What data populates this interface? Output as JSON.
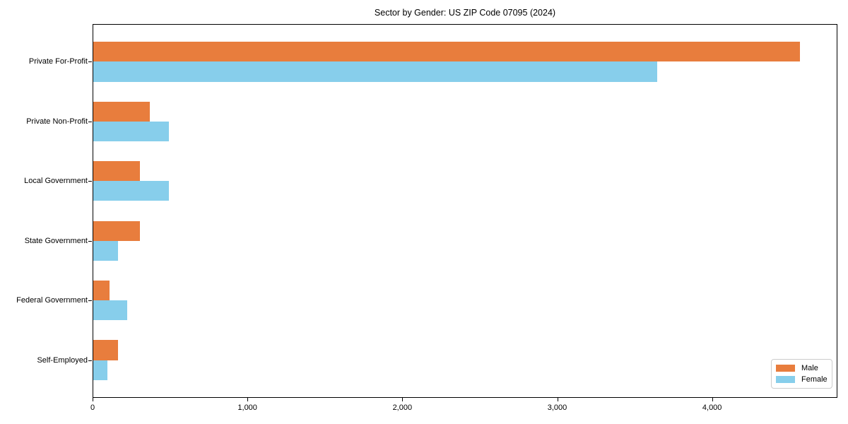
{
  "title": "Sector by Gender: US ZIP Code 07095 (2024)",
  "colors": {
    "male": "#e87d3d",
    "female": "#87ceeb",
    "axis": "#000000",
    "text": "#000000",
    "background": "#ffffff",
    "legend_border": "#cccccc"
  },
  "chart_data": {
    "type": "bar",
    "orientation": "horizontal",
    "title": "Sector by Gender: US ZIP Code 07095 (2024)",
    "categories": [
      "Private For-Profit",
      "Private Non-Profit",
      "Local Government",
      "State Government",
      "Federal Government",
      "Self-Employed"
    ],
    "series": [
      {
        "name": "Male",
        "color": "#e87d3d",
        "values": [
          4565,
          365,
          300,
          300,
          105,
          160
        ]
      },
      {
        "name": "Female",
        "color": "#87ceeb",
        "values": [
          3640,
          490,
          490,
          160,
          220,
          90
        ]
      }
    ],
    "xlabel": "",
    "ylabel": "",
    "xlim": [
      0,
      4800
    ],
    "x_ticks": [
      0,
      1000,
      2000,
      3000,
      4000
    ],
    "x_tick_labels": [
      "0",
      "1,000",
      "2,000",
      "3,000",
      "4,000"
    ],
    "ylim_units": [
      -0.62,
      5.62
    ],
    "bar_width_units": 0.3333,
    "grid": false,
    "legend": {
      "position": "lower-right",
      "entries": [
        "Male",
        "Female"
      ]
    }
  }
}
